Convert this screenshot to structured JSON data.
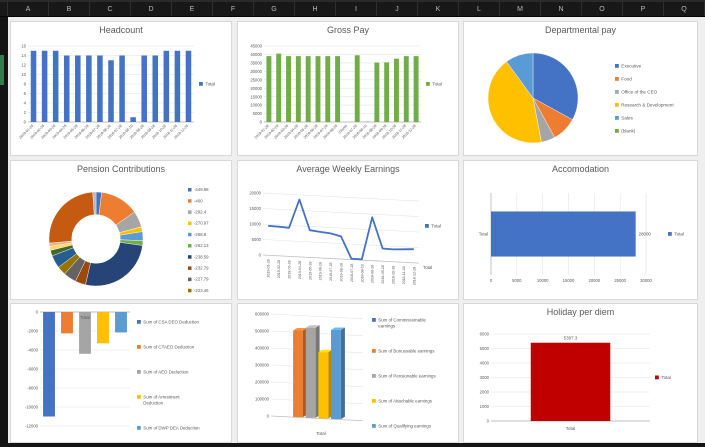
{
  "window": {
    "columns": [
      "A",
      "B",
      "C",
      "D",
      "E",
      "F",
      "G",
      "H",
      "I",
      "J",
      "K",
      "L",
      "M",
      "N",
      "O",
      "P",
      "Q"
    ]
  },
  "chart_data": [
    {
      "id": "headcount",
      "type": "bar",
      "title": "Headcount",
      "color": "#4472C4",
      "legend": [
        "Total"
      ],
      "ylim": [
        0,
        16
      ],
      "ytick": 2,
      "categories": [
        "2019-01-28",
        "2019-02-28",
        "2019-03-28",
        "2019-04-28",
        "2019-05-28",
        "2019-06-28",
        "2019-07-28",
        "2019-08-28",
        "2018-07-28",
        "2018-08-10",
        "2018-08-28",
        "2018-09-28",
        "2018-10-28",
        "2018-11-28",
        "2018-12-28"
      ],
      "values": [
        15,
        15,
        15,
        14,
        14,
        14,
        14,
        13,
        14,
        1,
        14,
        14,
        15,
        15,
        15
      ]
    },
    {
      "id": "gross_pay",
      "type": "bar",
      "title": "Gross Pay",
      "color": "#70AD47",
      "legend": [
        "Total"
      ],
      "ylim": [
        0,
        45000
      ],
      "ytick": 5000,
      "categories": [
        "2019-01-28",
        "2019-02-28",
        "2019-03-28",
        "2019-04-28",
        "2019-05-28",
        "2019-06-28",
        "2019-07-28",
        "2019-08-28",
        "(blank)",
        "2018-07-28",
        "2018-08-10",
        "2018-08-28",
        "2018-09-28",
        "2018-10-28",
        "2018-11-28",
        "2018-12-28"
      ],
      "values": [
        39000,
        40500,
        39000,
        39000,
        39000,
        39000,
        39000,
        39000,
        0,
        39500,
        200,
        35200,
        35300,
        37500,
        39000,
        39000
      ]
    },
    {
      "id": "departmental_pay",
      "type": "pie",
      "title": "Departmental pay",
      "slices": [
        {
          "label": "Executive",
          "value": 33,
          "color": "#4472C4"
        },
        {
          "label": "Food",
          "value": 9,
          "color": "#ED7D31"
        },
        {
          "label": "Office of the CEO",
          "value": 5,
          "color": "#A5A5A5"
        },
        {
          "label": "Research & Development",
          "value": 43,
          "color": "#FFC000"
        },
        {
          "label": "Sales",
          "value": 10,
          "color": "#5B9BD5"
        },
        {
          "label": "(blank)",
          "value": 0,
          "color": "#70AD47"
        }
      ]
    },
    {
      "id": "pension",
      "type": "donut",
      "title": "Pension Contributions",
      "legend": [
        {
          "label": "-449.98",
          "color": "#4472C4"
        },
        {
          "label": "-400",
          "color": "#ED7D31"
        },
        {
          "label": "-292.4",
          "color": "#A5A5A5"
        },
        {
          "label": "-270.97",
          "color": "#FFC000"
        },
        {
          "label": "-268.8",
          "color": "#5B9BD5"
        },
        {
          "label": "-262.13",
          "color": "#70AD47"
        },
        {
          "label": "-238.59",
          "color": "#264478"
        },
        {
          "label": "-232.79",
          "color": "#9E480E"
        },
        {
          "label": "-227.79",
          "color": "#636363"
        },
        {
          "label": "-223.46",
          "color": "#997300"
        }
      ],
      "slices": [
        {
          "angle": 7,
          "color": "#4472C4"
        },
        {
          "angle": 48,
          "color": "#ED7D31"
        },
        {
          "angle": 20,
          "color": "#A5A5A5"
        },
        {
          "angle": 6,
          "color": "#FFC000"
        },
        {
          "angle": 11,
          "color": "#5B9BD5"
        },
        {
          "angle": 6,
          "color": "#70AD47"
        },
        {
          "angle": 95,
          "color": "#264478"
        },
        {
          "angle": 13,
          "color": "#9E480E"
        },
        {
          "angle": 16,
          "color": "#636363"
        },
        {
          "angle": 11,
          "color": "#997300"
        },
        {
          "angle": 16,
          "color": "#255E91"
        },
        {
          "angle": 7,
          "color": "#43682B"
        },
        {
          "angle": 5,
          "color": "#FFD966"
        },
        {
          "angle": 4,
          "color": "#F4B183"
        },
        {
          "angle": 91,
          "color": "#C55A11"
        },
        {
          "angle": 4,
          "color": "#B7B7B7"
        }
      ]
    },
    {
      "id": "avg_weekly",
      "type": "line3d",
      "title": "Average Weekly Earnings",
      "color": "#4472C4",
      "legend": [
        "Total"
      ],
      "series_label": "Total",
      "ylim": [
        0,
        20000
      ],
      "ytick": 5000,
      "categories": [
        "2019-01-28",
        "2019-02-28",
        "2019-03-28",
        "2019-04-28",
        "2019-05-28",
        "2019-06-28",
        "2019-07-28",
        "2019-08-28",
        "2018-07-28",
        "2018-08-10",
        "2018-08-28",
        "2018-09-28",
        "2018-10-28",
        "2018-11-28",
        "2018-12-28"
      ],
      "values": [
        9500,
        9400,
        9200,
        18500,
        8800,
        8400,
        8100,
        7300,
        300,
        250,
        14000,
        4100,
        4000,
        4200,
        4400
      ]
    },
    {
      "id": "accomodation",
      "type": "hbar",
      "title": "Accomodation",
      "color": "#4472C4",
      "legend": [
        "Total"
      ],
      "xlim": [
        0,
        30000
      ],
      "xtick": 5000,
      "category": "Total",
      "value": 28000,
      "data_label": "28000"
    },
    {
      "id": "deductions",
      "type": "negbar",
      "title": "",
      "category": "Total",
      "ylim": [
        0,
        -12000
      ],
      "ytick": 2000,
      "series": [
        {
          "name": "Sum of CSA DEO Deduction",
          "color": "#4472C4",
          "value": -11000
        },
        {
          "name": "Sum of CTAEO Deduction",
          "color": "#ED7D31",
          "value": -2250
        },
        {
          "name": "Sum of AEO Deduction",
          "color": "#A5A5A5",
          "value": -4400
        },
        {
          "name": "Sum of Arrestment Deduction",
          "color": "#FFC000",
          "value": -3300
        },
        {
          "name": "Sum of DWP DEA Deduction",
          "color": "#5B9BD5",
          "value": -2150
        }
      ]
    },
    {
      "id": "earnings",
      "type": "bar3d",
      "title": "",
      "category": "Total",
      "ylim": [
        0,
        600000
      ],
      "ytick": 100000,
      "series": [
        {
          "name": "Sum of Commissionable earnings",
          "color": "#4472C4",
          "value": 0
        },
        {
          "name": "Sum of Bonussable earnings",
          "color": "#ED7D31",
          "value": 510000
        },
        {
          "name": "Sum of Pensionable earnings",
          "color": "#A5A5A5",
          "value": 530000
        },
        {
          "name": "Sum of Attachable earnings",
          "color": "#FFC000",
          "value": 390000
        },
        {
          "name": "Sum of Qualifying earnings",
          "color": "#5B9BD5",
          "value": 525000
        }
      ]
    },
    {
      "id": "holiday",
      "type": "bar",
      "title": "Holiday per diem",
      "color": "#C00000",
      "legend": [
        "Total"
      ],
      "ylim": [
        0,
        6000
      ],
      "ytick": 1000,
      "categories": [
        "Total"
      ],
      "values": [
        5397.3
      ],
      "data_label": "5397.3"
    }
  ]
}
